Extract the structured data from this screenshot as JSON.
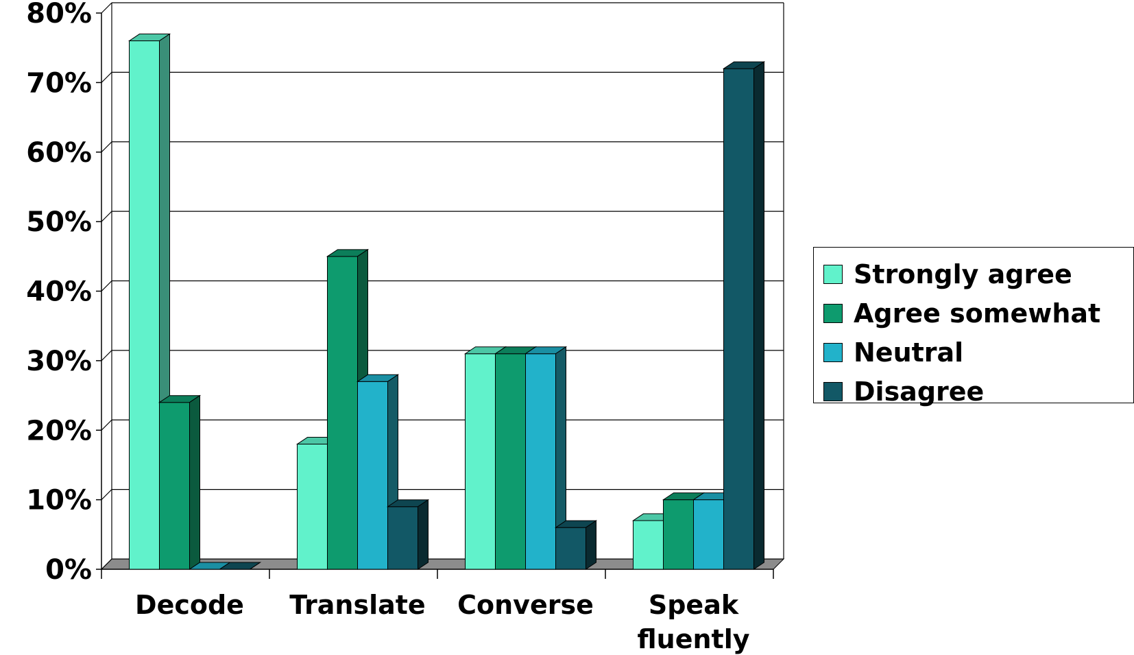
{
  "chart_data": {
    "type": "bar",
    "categories": [
      "Decode",
      "Translate",
      "Converse",
      "Speak fluently"
    ],
    "category_lines": [
      [
        "Decode"
      ],
      [
        "Translate"
      ],
      [
        "Converse"
      ],
      [
        "Speak",
        "fluently"
      ]
    ],
    "series": [
      {
        "name": "Strongly agree",
        "values": [
          76,
          18,
          31,
          7
        ],
        "color": "#61F2CB",
        "side_color": "#3A8F78",
        "top_color": "#4CC7A6"
      },
      {
        "name": "Agree somewhat",
        "values": [
          24,
          45,
          31,
          10
        ],
        "color": "#0E9B6E",
        "side_color": "#0B5A3E",
        "top_color": "#0C7E5A"
      },
      {
        "name": "Neutral",
        "values": [
          0,
          27,
          31,
          10
        ],
        "color": "#22B2CA",
        "side_color": "#155B66",
        "top_color": "#1A8FA3"
      },
      {
        "name": "Disagree",
        "values": [
          0,
          9,
          6,
          72
        ],
        "color": "#125866",
        "side_color": "#0A2A30",
        "top_color": "#0E4550"
      }
    ],
    "y_ticks": [
      "0%",
      "10%",
      "20%",
      "30%",
      "40%",
      "50%",
      "60%",
      "70%",
      "80%"
    ],
    "ylim": [
      0,
      80
    ],
    "grid": true,
    "legend_position": "right",
    "three_d": true
  }
}
